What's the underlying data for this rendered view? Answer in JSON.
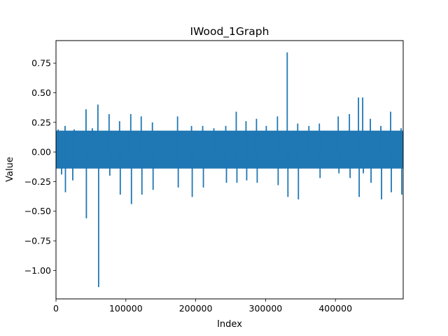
{
  "chart_data": {
    "type": "line",
    "title": "IWood_1Graph",
    "xlabel": "Index",
    "ylabel": "Value",
    "xlim": [
      0,
      497000
    ],
    "ylim": [
      -1.24,
      0.94
    ],
    "xticks": [
      0,
      100000,
      200000,
      300000,
      400000
    ],
    "xtick_labels": [
      "0",
      "100000",
      "200000",
      "300000",
      "400000"
    ],
    "yticks": [
      -1.0,
      -0.75,
      -0.5,
      -0.25,
      0.0,
      0.25,
      0.5,
      0.75
    ],
    "ytick_labels": [
      "−1.00",
      "−0.75",
      "−0.50",
      "−0.25",
      "0.00",
      "0.25",
      "0.50",
      "0.75"
    ],
    "grid": false,
    "legend": "none",
    "series": [
      {
        "color": "#1f77b4",
        "band_upper": 0.18,
        "band_lower": -0.14,
        "peaks": [
          {
            "x": 3000,
            "y": 0.19
          },
          {
            "x": 8000,
            "y": -0.19
          },
          {
            "x": 13000,
            "y": 0.22
          },
          {
            "x": 13500,
            "y": -0.34
          },
          {
            "x": 24000,
            "y": -0.24
          },
          {
            "x": 26000,
            "y": 0.19
          },
          {
            "x": 43000,
            "y": 0.36
          },
          {
            "x": 43500,
            "y": -0.56
          },
          {
            "x": 52000,
            "y": 0.2
          },
          {
            "x": 60000,
            "y": 0.4
          },
          {
            "x": 61000,
            "y": -1.14
          },
          {
            "x": 76000,
            "y": 0.32
          },
          {
            "x": 77000,
            "y": -0.2
          },
          {
            "x": 91000,
            "y": 0.26
          },
          {
            "x": 92000,
            "y": -0.36
          },
          {
            "x": 107000,
            "y": 0.32
          },
          {
            "x": 108000,
            "y": -0.44
          },
          {
            "x": 122000,
            "y": 0.3
          },
          {
            "x": 123000,
            "y": -0.36
          },
          {
            "x": 138000,
            "y": 0.25
          },
          {
            "x": 139000,
            "y": -0.32
          },
          {
            "x": 174000,
            "y": 0.3
          },
          {
            "x": 175000,
            "y": -0.3
          },
          {
            "x": 194000,
            "y": 0.22
          },
          {
            "x": 195000,
            "y": -0.38
          },
          {
            "x": 210000,
            "y": 0.22
          },
          {
            "x": 211000,
            "y": -0.3
          },
          {
            "x": 226000,
            "y": 0.2
          },
          {
            "x": 243000,
            "y": 0.22
          },
          {
            "x": 244000,
            "y": -0.26
          },
          {
            "x": 258000,
            "y": 0.34
          },
          {
            "x": 259000,
            "y": -0.26
          },
          {
            "x": 272000,
            "y": 0.26
          },
          {
            "x": 273000,
            "y": -0.24
          },
          {
            "x": 287000,
            "y": 0.28
          },
          {
            "x": 288000,
            "y": -0.26
          },
          {
            "x": 301000,
            "y": 0.22
          },
          {
            "x": 317000,
            "y": 0.3
          },
          {
            "x": 318000,
            "y": -0.28
          },
          {
            "x": 331000,
            "y": 0.84
          },
          {
            "x": 332000,
            "y": -0.38
          },
          {
            "x": 346000,
            "y": 0.24
          },
          {
            "x": 347000,
            "y": -0.4
          },
          {
            "x": 362000,
            "y": 0.22
          },
          {
            "x": 377000,
            "y": 0.24
          },
          {
            "x": 378000,
            "y": -0.22
          },
          {
            "x": 404000,
            "y": 0.3
          },
          {
            "x": 405000,
            "y": -0.18
          },
          {
            "x": 420000,
            "y": 0.32
          },
          {
            "x": 421000,
            "y": -0.22
          },
          {
            "x": 433000,
            "y": 0.46
          },
          {
            "x": 434000,
            "y": -0.38
          },
          {
            "x": 439000,
            "y": 0.46
          },
          {
            "x": 440000,
            "y": -0.18
          },
          {
            "x": 450000,
            "y": 0.28
          },
          {
            "x": 451000,
            "y": -0.26
          },
          {
            "x": 465000,
            "y": 0.22
          },
          {
            "x": 466000,
            "y": -0.4
          },
          {
            "x": 479000,
            "y": 0.34
          },
          {
            "x": 480000,
            "y": -0.34
          },
          {
            "x": 494000,
            "y": 0.2
          },
          {
            "x": 495000,
            "y": -0.36
          }
        ]
      }
    ]
  }
}
